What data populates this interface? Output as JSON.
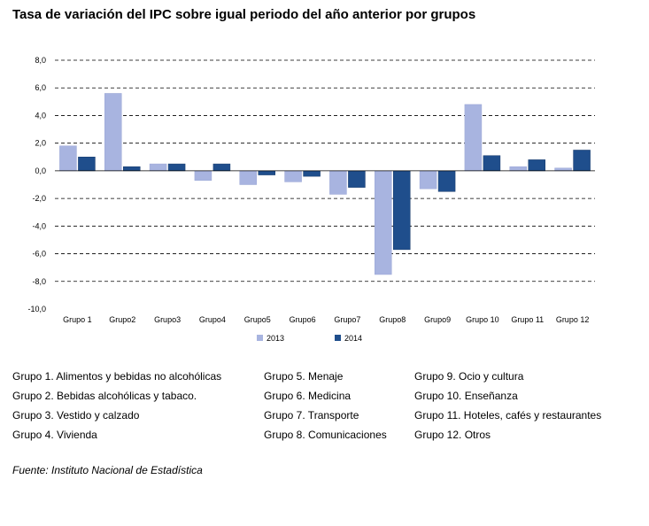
{
  "title": "Tasa de variación del IPC sobre igual periodo del año anterior por grupos",
  "chart_data": {
    "type": "bar",
    "categories": [
      "Grupo 1",
      "Grupo2",
      "Grupo3",
      "Grupo4",
      "Grupo5",
      "Grupo6",
      "Grupo7",
      "Grupo8",
      "Grupo9",
      "Grupo 10",
      "Grupo 11",
      "Grupo 12"
    ],
    "series": [
      {
        "name": "2013",
        "color": "#a8b4e0",
        "values": [
          1.8,
          5.6,
          0.5,
          -0.7,
          -1.0,
          -0.8,
          -1.7,
          -7.5,
          -1.3,
          4.8,
          0.3,
          0.2
        ]
      },
      {
        "name": "2014",
        "color": "#1f4e8c",
        "values": [
          1.0,
          0.3,
          0.5,
          0.5,
          -0.3,
          -0.4,
          -1.2,
          -5.7,
          -1.5,
          1.1,
          0.8,
          1.5
        ]
      }
    ],
    "ylim": [
      -10,
      8
    ],
    "yticks": [
      "8,0",
      "6,0",
      "4,0",
      "2,0",
      "0,0",
      "-2,0",
      "-4,0",
      "-6,0",
      "-8,0",
      "-10,0"
    ],
    "ytick_values": [
      8,
      6,
      4,
      2,
      0,
      -2,
      -4,
      -6,
      -8,
      -10
    ],
    "grid": "dashed horizontal",
    "legend": "bottom"
  },
  "legend_groups": [
    [
      "Grupo 1. Alimentos y bebidas no alcohólicas",
      "Grupo 2. Bebidas alcohólicas y  tabaco.",
      "Grupo 3. Vestido y calzado",
      "Grupo 4. Vivienda"
    ],
    [
      "Grupo 5. Menaje",
      "Grupo 6. Medicina",
      "Grupo 7. Transporte",
      "Grupo 8. Comunicaciones"
    ],
    [
      "Grupo 9. Ocio y cultura",
      "Grupo 10. Enseñanza",
      "Grupo 11. Hoteles, cafés y restaurantes",
      "Grupo 12. Otros"
    ]
  ],
  "source": "Fuente: Instituto Nacional de Estadística"
}
